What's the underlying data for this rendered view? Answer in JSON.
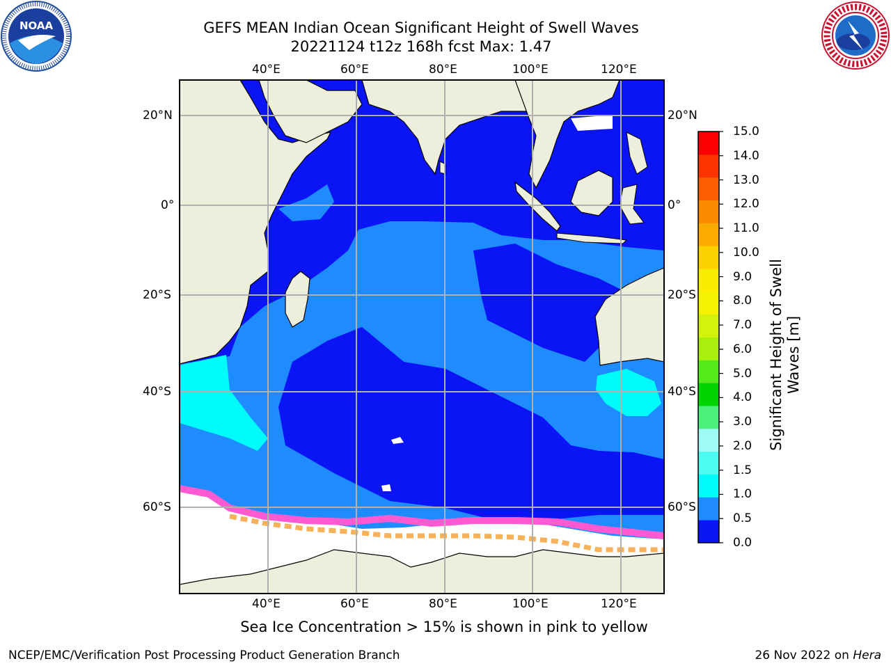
{
  "title": {
    "line1": "GEFS MEAN Indian Ocean Significant Height of Swell Waves",
    "line2": "20221124 t12z 168h fcst   Max: 1.47"
  },
  "map": {
    "lon_labels": [
      "40°E",
      "60°E",
      "80°E",
      "100°E",
      "120°E"
    ],
    "lat_labels": [
      "20°N",
      "0°",
      "20°S",
      "40°S",
      "60°S"
    ],
    "colors": {
      "land": "#eeeedd",
      "ocean_low": "#0a14f5",
      "ocean_mid": "#1e8bff",
      "ocean_high": "#00fbfb",
      "sea_ice": "#ffffff",
      "ice_edge_pink": "#ff5ad2",
      "ice_edge_orange": "#f6b25a",
      "gridline": "#b0b0b0"
    }
  },
  "colorbar": {
    "label": "Significant Height of Swell Waves [m]",
    "ticks": [
      "15.0",
      "14.0",
      "13.0",
      "12.0",
      "11.0",
      "10.0",
      "9.0",
      "8.0",
      "7.0",
      "6.0",
      "5.0",
      "4.0",
      "3.0",
      "2.0",
      "1.5",
      "1.0",
      "0.5",
      "0.0"
    ],
    "colors_bottom_to_top": [
      "#0a14f5",
      "#1e8bff",
      "#00fbfb",
      "#4dfbf0",
      "#a0fbf7",
      "#4af279",
      "#00d400",
      "#55e81a",
      "#a8ef0d",
      "#d3f30a",
      "#f4f300",
      "#fbed00",
      "#fbd200",
      "#fbaa00",
      "#fb8a00",
      "#fb5e00",
      "#fb3400",
      "#fb0000"
    ]
  },
  "caption": "Sea Ice Concentration > 15% is shown in pink to yellow",
  "footer": {
    "left": "NCEP/EMC/Verification Post Processing Product Generation Branch",
    "date": "26 Nov 2022 on ",
    "machine": "Hera"
  },
  "logos": {
    "noaa_text": "NOAA",
    "nws_text": "NATIONAL WEATHER SERVICE"
  }
}
